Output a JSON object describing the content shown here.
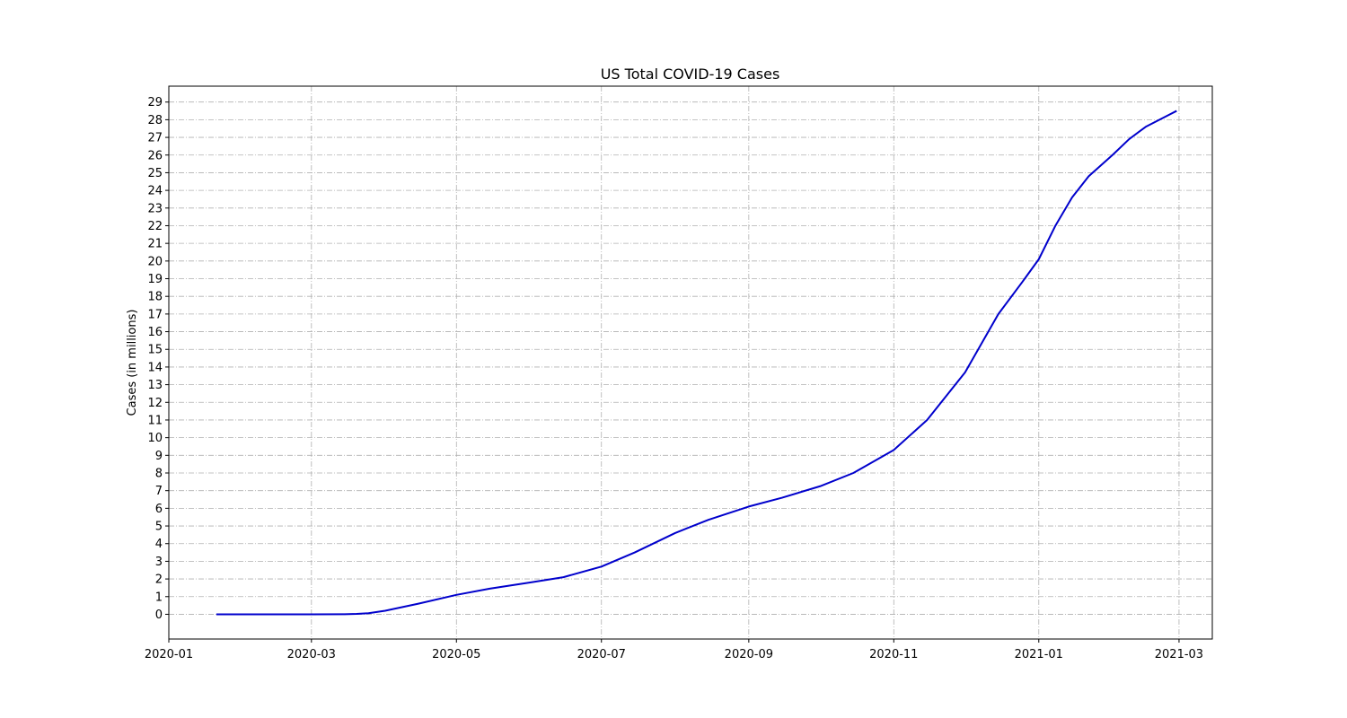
{
  "chart_data": {
    "type": "line",
    "title": "US Total COVID-19 Cases",
    "xlabel": "",
    "ylabel": "Cases (in millions)",
    "x_axis_type": "date",
    "xlim": [
      "2020-01-01",
      "2021-03-15"
    ],
    "ylim": [
      -1.4,
      29.9
    ],
    "x_ticks": [
      "2020-01",
      "2020-03",
      "2020-05",
      "2020-07",
      "2020-09",
      "2020-11",
      "2021-01",
      "2021-03"
    ],
    "y_ticks": [
      0,
      1,
      2,
      3,
      4,
      5,
      6,
      7,
      8,
      9,
      10,
      11,
      12,
      13,
      14,
      15,
      16,
      17,
      18,
      19,
      20,
      21,
      22,
      23,
      24,
      25,
      26,
      27,
      28,
      29
    ],
    "grid": true,
    "legend": "none",
    "series": [
      {
        "color": "#0000cc",
        "points": [
          [
            "2020-01-21",
            0.0
          ],
          [
            "2020-02-15",
            0.0
          ],
          [
            "2020-03-01",
            0.0
          ],
          [
            "2020-03-15",
            0.005
          ],
          [
            "2020-03-20",
            0.02
          ],
          [
            "2020-03-25",
            0.06
          ],
          [
            "2020-04-01",
            0.2
          ],
          [
            "2020-04-15",
            0.6
          ],
          [
            "2020-05-01",
            1.1
          ],
          [
            "2020-05-15",
            1.45
          ],
          [
            "2020-06-01",
            1.8
          ],
          [
            "2020-06-15",
            2.1
          ],
          [
            "2020-07-01",
            2.7
          ],
          [
            "2020-07-15",
            3.5
          ],
          [
            "2020-08-01",
            4.6
          ],
          [
            "2020-08-15",
            5.35
          ],
          [
            "2020-09-01",
            6.1
          ],
          [
            "2020-09-15",
            6.6
          ],
          [
            "2020-10-01",
            7.25
          ],
          [
            "2020-10-15",
            8.0
          ],
          [
            "2020-11-01",
            9.3
          ],
          [
            "2020-11-15",
            11.0
          ],
          [
            "2020-12-01",
            13.7
          ],
          [
            "2020-12-15",
            17.0
          ],
          [
            "2020-12-25",
            18.8
          ],
          [
            "2021-01-01",
            20.1
          ],
          [
            "2021-01-08",
            22.0
          ],
          [
            "2021-01-15",
            23.6
          ],
          [
            "2021-01-22",
            24.8
          ],
          [
            "2021-02-01",
            26.0
          ],
          [
            "2021-02-08",
            26.9
          ],
          [
            "2021-02-15",
            27.6
          ],
          [
            "2021-02-28",
            28.5
          ]
        ]
      }
    ]
  }
}
